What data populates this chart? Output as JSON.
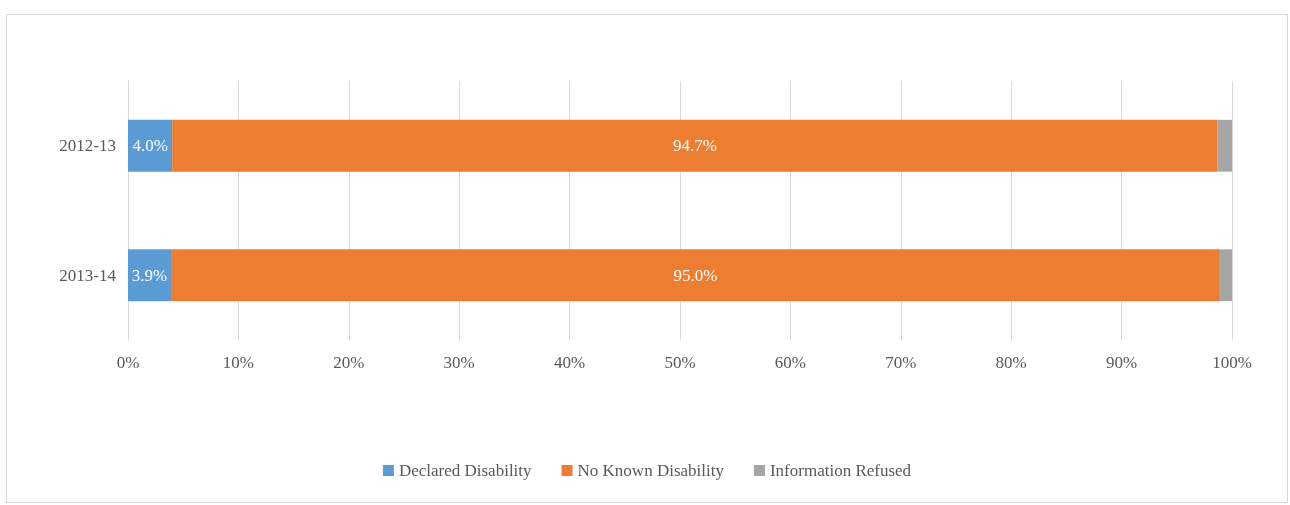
{
  "chart_data": {
    "type": "bar",
    "orientation": "horizontal",
    "stacked": true,
    "categories": [
      "2012-13",
      "2013-14"
    ],
    "series": [
      {
        "name": "Declared Disability",
        "color": "#5b9bd5",
        "values": [
          4.0,
          3.9
        ],
        "value_labels": [
          "4.0%",
          "3.9%"
        ]
      },
      {
        "name": "No Known Disability",
        "color": "#ed7d31",
        "values": [
          94.7,
          95.0
        ],
        "value_labels": [
          "94.7%",
          "95.0%"
        ]
      },
      {
        "name": "Information Refused",
        "color": "#a5a5a5",
        "values": [
          1.3,
          1.1
        ]
      }
    ],
    "xlim": [
      0,
      100
    ],
    "xticks": [
      {
        "value": 0,
        "label": "0%"
      },
      {
        "value": 10,
        "label": "10%"
      },
      {
        "value": 20,
        "label": "20%"
      },
      {
        "value": 30,
        "label": "30%"
      },
      {
        "value": 40,
        "label": "40%"
      },
      {
        "value": 50,
        "label": "50%"
      },
      {
        "value": 60,
        "label": "60%"
      },
      {
        "value": 70,
        "label": "70%"
      },
      {
        "value": 80,
        "label": "80%"
      },
      {
        "value": 90,
        "label": "90%"
      },
      {
        "value": 100,
        "label": "100%"
      }
    ],
    "grid": "x",
    "legend": "bottom"
  }
}
